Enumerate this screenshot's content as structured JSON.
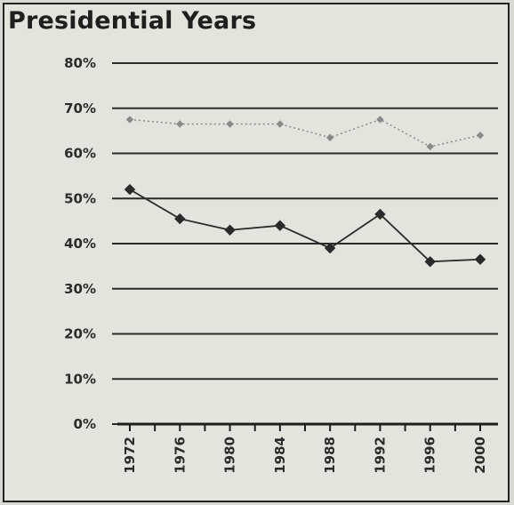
{
  "chart_data": {
    "type": "line",
    "title": "Presidential Years",
    "xlabel": "",
    "ylabel": "",
    "x": [
      1972,
      1976,
      1980,
      1984,
      1988,
      1992,
      1996,
      2000
    ],
    "x_tick_labels": [
      "1972",
      "1976",
      "1980",
      "1984",
      "1988",
      "1992",
      "1996",
      "2000"
    ],
    "y_tick_labels": [
      "0%",
      "10%",
      "20%",
      "30%",
      "40%",
      "50%",
      "60%",
      "70%",
      "80%"
    ],
    "ylim": [
      0,
      80
    ],
    "grid": true,
    "series": [
      {
        "values": [
          67.5,
          66.5,
          66.5,
          66.5,
          63.5,
          67.5,
          61.5,
          64
        ],
        "color": "#8a8a8a",
        "style": "dotted",
        "marker": "small-diamond"
      },
      {
        "values": [
          52,
          45.5,
          43,
          44,
          39,
          46.5,
          36,
          36.5
        ],
        "color": "#2a2a2a",
        "style": "solid",
        "marker": "diamond"
      }
    ]
  }
}
